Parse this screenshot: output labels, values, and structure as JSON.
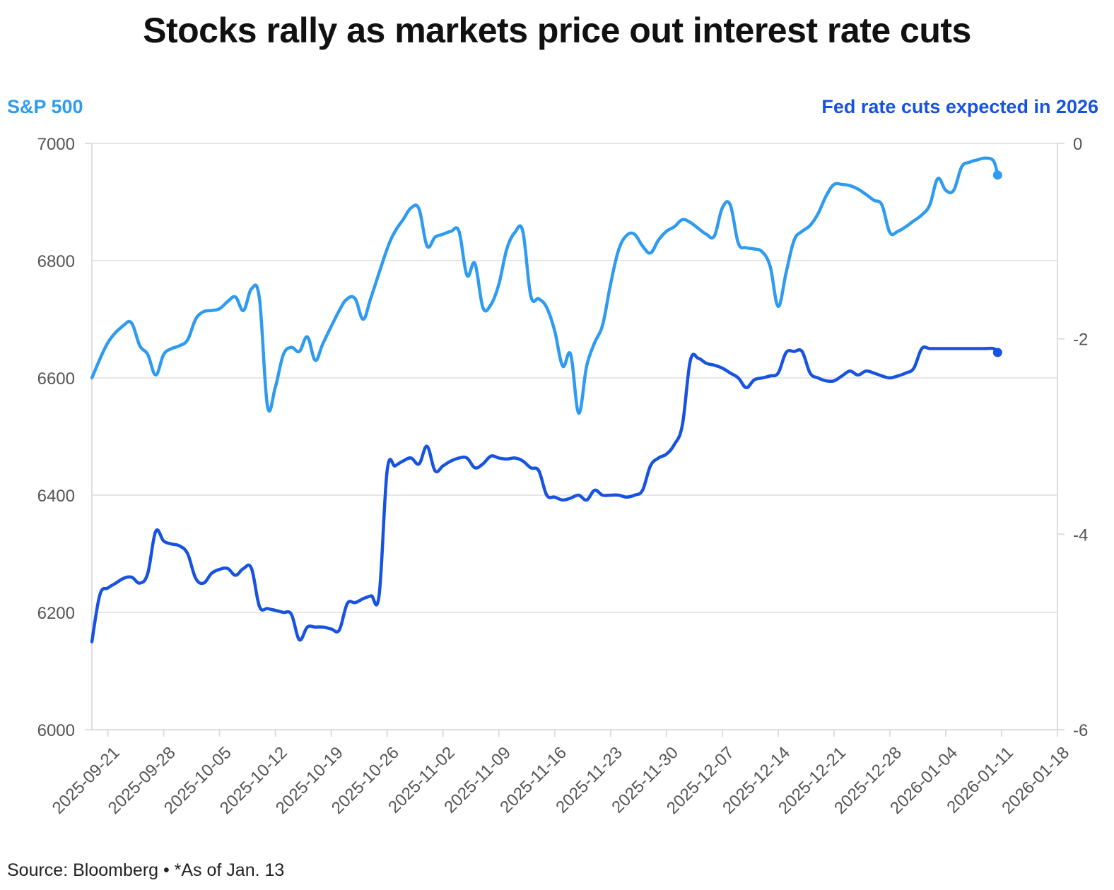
{
  "chart_data": {
    "type": "line",
    "title": "Stocks rally as markets price out interest rate cuts",
    "source": "Source: Bloomberg • *As of Jan. 13",
    "colors": {
      "sp500": "#2f9bf0",
      "fed": "#1753e0",
      "grid": "#e6e6e6",
      "axis": "#dddddd"
    },
    "left_axis": {
      "label": "S&P 500",
      "range": [
        6000,
        7000
      ],
      "ticks": [
        6000,
        6200,
        6400,
        6600,
        6800,
        7000
      ]
    },
    "right_axis": {
      "label": "Fed rate cuts expected in 2026",
      "range": [
        -6,
        0
      ],
      "ticks": [
        -6,
        -4,
        -2,
        0
      ]
    },
    "x_axis": {
      "start": "2025-09-19",
      "end": "2026-01-18",
      "ticks": [
        "2025-09-21",
        "2025-09-28",
        "2025-10-05",
        "2025-10-12",
        "2025-10-19",
        "2025-10-26",
        "2025-11-02",
        "2025-11-09",
        "2025-11-16",
        "2025-11-23",
        "2025-11-30",
        "2025-12-07",
        "2025-12-14",
        "2025-12-21",
        "2025-12-28",
        "2026-01-04",
        "2026-01-11",
        "2026-01-18"
      ]
    },
    "series": [
      {
        "name": "S&P 500",
        "axis": "left",
        "points": [
          [
            "2025-09-19",
            6600
          ],
          [
            "2025-09-21",
            6660
          ],
          [
            "2025-09-23",
            6690
          ],
          [
            "2025-09-24",
            6693
          ],
          [
            "2025-09-25",
            6655
          ],
          [
            "2025-09-26",
            6640
          ],
          [
            "2025-09-27",
            6605
          ],
          [
            "2025-09-28",
            6640
          ],
          [
            "2025-09-29",
            6650
          ],
          [
            "2025-09-30",
            6655
          ],
          [
            "2025-10-01",
            6665
          ],
          [
            "2025-10-02",
            6700
          ],
          [
            "2025-10-03",
            6713
          ],
          [
            "2025-10-04",
            6715
          ],
          [
            "2025-10-05",
            6718
          ],
          [
            "2025-10-06",
            6730
          ],
          [
            "2025-10-07",
            6738
          ],
          [
            "2025-10-08",
            6715
          ],
          [
            "2025-10-09",
            6752
          ],
          [
            "2025-10-10",
            6735
          ],
          [
            "2025-10-11",
            6552
          ],
          [
            "2025-10-12",
            6585
          ],
          [
            "2025-10-13",
            6640
          ],
          [
            "2025-10-14",
            6652
          ],
          [
            "2025-10-15",
            6645
          ],
          [
            "2025-10-16",
            6670
          ],
          [
            "2025-10-17",
            6630
          ],
          [
            "2025-10-18",
            6660
          ],
          [
            "2025-10-20",
            6715
          ],
          [
            "2025-10-21",
            6735
          ],
          [
            "2025-10-22",
            6735
          ],
          [
            "2025-10-23",
            6700
          ],
          [
            "2025-10-24",
            6738
          ],
          [
            "2025-10-26",
            6820
          ],
          [
            "2025-10-27",
            6850
          ],
          [
            "2025-10-28",
            6870
          ],
          [
            "2025-10-29",
            6890
          ],
          [
            "2025-10-30",
            6888
          ],
          [
            "2025-10-31",
            6825
          ],
          [
            "2025-11-01",
            6840
          ],
          [
            "2025-11-02",
            6845
          ],
          [
            "2025-11-03",
            6850
          ],
          [
            "2025-11-04",
            6850
          ],
          [
            "2025-11-05",
            6775
          ],
          [
            "2025-11-06",
            6795
          ],
          [
            "2025-11-07",
            6720
          ],
          [
            "2025-11-08",
            6725
          ],
          [
            "2025-11-09",
            6760
          ],
          [
            "2025-11-10",
            6820
          ],
          [
            "2025-11-11",
            6848
          ],
          [
            "2025-11-12",
            6850
          ],
          [
            "2025-11-13",
            6740
          ],
          [
            "2025-11-14",
            6735
          ],
          [
            "2025-11-15",
            6720
          ],
          [
            "2025-11-16",
            6680
          ],
          [
            "2025-11-17",
            6620
          ],
          [
            "2025-11-18",
            6640
          ],
          [
            "2025-11-19",
            6540
          ],
          [
            "2025-11-20",
            6620
          ],
          [
            "2025-11-21",
            6660
          ],
          [
            "2025-11-22",
            6690
          ],
          [
            "2025-11-23",
            6760
          ],
          [
            "2025-11-24",
            6818
          ],
          [
            "2025-11-25",
            6843
          ],
          [
            "2025-11-26",
            6845
          ],
          [
            "2025-11-27",
            6825
          ],
          [
            "2025-11-28",
            6813
          ],
          [
            "2025-11-29",
            6835
          ],
          [
            "2025-11-30",
            6850
          ],
          [
            "2025-12-01",
            6858
          ],
          [
            "2025-12-02",
            6870
          ],
          [
            "2025-12-03",
            6865
          ],
          [
            "2025-12-04",
            6855
          ],
          [
            "2025-12-05",
            6845
          ],
          [
            "2025-12-06",
            6842
          ],
          [
            "2025-12-07",
            6890
          ],
          [
            "2025-12-08",
            6895
          ],
          [
            "2025-12-09",
            6830
          ],
          [
            "2025-12-10",
            6822
          ],
          [
            "2025-12-11",
            6820
          ],
          [
            "2025-12-12",
            6815
          ],
          [
            "2025-12-13",
            6790
          ],
          [
            "2025-12-14",
            6722
          ],
          [
            "2025-12-15",
            6780
          ],
          [
            "2025-12-16",
            6835
          ],
          [
            "2025-12-17",
            6850
          ],
          [
            "2025-12-18",
            6860
          ],
          [
            "2025-12-19",
            6880
          ],
          [
            "2025-12-20",
            6910
          ],
          [
            "2025-12-21",
            6930
          ],
          [
            "2025-12-22",
            6930
          ],
          [
            "2025-12-23",
            6928
          ],
          [
            "2025-12-24",
            6922
          ],
          [
            "2025-12-25",
            6913
          ],
          [
            "2025-12-26",
            6903
          ],
          [
            "2025-12-27",
            6895
          ],
          [
            "2025-12-28",
            6848
          ],
          [
            "2025-12-29",
            6850
          ],
          [
            "2025-12-30",
            6858
          ],
          [
            "2025-12-31",
            6868
          ],
          [
            "2026-01-01",
            6878
          ],
          [
            "2026-01-02",
            6895
          ],
          [
            "2026-01-03",
            6940
          ],
          [
            "2026-01-04",
            6920
          ],
          [
            "2026-01-05",
            6920
          ],
          [
            "2026-01-06",
            6960
          ],
          [
            "2026-01-07",
            6968
          ],
          [
            "2026-01-08",
            6972
          ],
          [
            "2026-01-09",
            6975
          ],
          [
            "2026-01-10",
            6970
          ],
          [
            "2026-01-10.5",
            6946
          ]
        ]
      },
      {
        "name": "Fed rate cuts expected in 2026",
        "axis": "right",
        "points": [
          [
            "2025-09-19",
            -5.1
          ],
          [
            "2025-09-20",
            -4.62
          ],
          [
            "2025-09-21",
            -4.55
          ],
          [
            "2025-09-22",
            -4.5
          ],
          [
            "2025-09-23",
            -4.45
          ],
          [
            "2025-09-24",
            -4.44
          ],
          [
            "2025-09-25",
            -4.5
          ],
          [
            "2025-09-26",
            -4.4
          ],
          [
            "2025-09-27",
            -3.97
          ],
          [
            "2025-09-28",
            -4.07
          ],
          [
            "2025-09-29",
            -4.1
          ],
          [
            "2025-09-30",
            -4.12
          ],
          [
            "2025-10-01",
            -4.2
          ],
          [
            "2025-10-02",
            -4.45
          ],
          [
            "2025-10-03",
            -4.5
          ],
          [
            "2025-10-04",
            -4.4
          ],
          [
            "2025-10-05",
            -4.36
          ],
          [
            "2025-10-06",
            -4.35
          ],
          [
            "2025-10-07",
            -4.42
          ],
          [
            "2025-10-08",
            -4.35
          ],
          [
            "2025-10-09",
            -4.35
          ],
          [
            "2025-10-10",
            -4.74
          ],
          [
            "2025-10-11",
            -4.76
          ],
          [
            "2025-10-12",
            -4.78
          ],
          [
            "2025-10-13",
            -4.8
          ],
          [
            "2025-10-14",
            -4.82
          ],
          [
            "2025-10-15",
            -5.08
          ],
          [
            "2025-10-16",
            -4.95
          ],
          [
            "2025-10-17",
            -4.95
          ],
          [
            "2025-10-18",
            -4.95
          ],
          [
            "2025-10-19",
            -4.97
          ],
          [
            "2025-10-20",
            -4.98
          ],
          [
            "2025-10-21",
            -4.71
          ],
          [
            "2025-10-22",
            -4.7
          ],
          [
            "2025-10-23",
            -4.66
          ],
          [
            "2025-10-24",
            -4.63
          ],
          [
            "2025-10-25",
            -4.62
          ],
          [
            "2025-10-26",
            -3.35
          ],
          [
            "2025-10-27",
            -3.3
          ],
          [
            "2025-10-28",
            -3.25
          ],
          [
            "2025-10-29",
            -3.22
          ],
          [
            "2025-10-30",
            -3.28
          ],
          [
            "2025-10-31",
            -3.1
          ],
          [
            "2025-11-01",
            -3.35
          ],
          [
            "2025-11-02",
            -3.3
          ],
          [
            "2025-11-03",
            -3.25
          ],
          [
            "2025-11-04",
            -3.22
          ],
          [
            "2025-11-05",
            -3.22
          ],
          [
            "2025-11-06",
            -3.32
          ],
          [
            "2025-11-07",
            -3.28
          ],
          [
            "2025-11-08",
            -3.2
          ],
          [
            "2025-11-09",
            -3.22
          ],
          [
            "2025-11-10",
            -3.23
          ],
          [
            "2025-11-11",
            -3.22
          ],
          [
            "2025-11-12",
            -3.25
          ],
          [
            "2025-11-13",
            -3.32
          ],
          [
            "2025-11-14",
            -3.35
          ],
          [
            "2025-11-15",
            -3.6
          ],
          [
            "2025-11-16",
            -3.62
          ],
          [
            "2025-11-17",
            -3.65
          ],
          [
            "2025-11-18",
            -3.63
          ],
          [
            "2025-11-19",
            -3.6
          ],
          [
            "2025-11-20",
            -3.65
          ],
          [
            "2025-11-21",
            -3.55
          ],
          [
            "2025-11-22",
            -3.6
          ],
          [
            "2025-11-23",
            -3.6
          ],
          [
            "2025-11-24",
            -3.6
          ],
          [
            "2025-11-25",
            -3.62
          ],
          [
            "2025-11-26",
            -3.6
          ],
          [
            "2025-11-27",
            -3.55
          ],
          [
            "2025-11-28",
            -3.3
          ],
          [
            "2025-11-29",
            -3.22
          ],
          [
            "2025-11-30",
            -3.18
          ],
          [
            "2025-12-01",
            -3.08
          ],
          [
            "2025-12-02",
            -2.88
          ],
          [
            "2025-12-03",
            -2.22
          ],
          [
            "2025-12-04",
            -2.2
          ],
          [
            "2025-12-05",
            -2.25
          ],
          [
            "2025-12-06",
            -2.27
          ],
          [
            "2025-12-07",
            -2.3
          ],
          [
            "2025-12-08",
            -2.35
          ],
          [
            "2025-12-09",
            -2.4
          ],
          [
            "2025-12-10",
            -2.5
          ],
          [
            "2025-12-11",
            -2.42
          ],
          [
            "2025-12-12",
            -2.4
          ],
          [
            "2025-12-13",
            -2.38
          ],
          [
            "2025-12-14",
            -2.35
          ],
          [
            "2025-12-15",
            -2.14
          ],
          [
            "2025-12-16",
            -2.13
          ],
          [
            "2025-12-17",
            -2.13
          ],
          [
            "2025-12-18",
            -2.35
          ],
          [
            "2025-12-19",
            -2.4
          ],
          [
            "2025-12-20",
            -2.43
          ],
          [
            "2025-12-21",
            -2.43
          ],
          [
            "2025-12-22",
            -2.38
          ],
          [
            "2025-12-23",
            -2.33
          ],
          [
            "2025-12-24",
            -2.37
          ],
          [
            "2025-12-25",
            -2.33
          ],
          [
            "2025-12-26",
            -2.35
          ],
          [
            "2025-12-27",
            -2.38
          ],
          [
            "2025-12-28",
            -2.4
          ],
          [
            "2025-12-29",
            -2.38
          ],
          [
            "2025-12-30",
            -2.35
          ],
          [
            "2025-12-31",
            -2.3
          ],
          [
            "2026-01-01",
            -2.1
          ],
          [
            "2026-01-02",
            -2.1
          ],
          [
            "2026-01-03",
            -2.1
          ],
          [
            "2026-01-04",
            -2.1
          ],
          [
            "2026-01-05",
            -2.1
          ],
          [
            "2026-01-06",
            -2.1
          ],
          [
            "2026-01-07",
            -2.1
          ],
          [
            "2026-01-08",
            -2.1
          ],
          [
            "2026-01-09",
            -2.1
          ],
          [
            "2026-01-10",
            -2.1
          ],
          [
            "2026-01-10.5",
            -2.14
          ]
        ]
      }
    ]
  }
}
